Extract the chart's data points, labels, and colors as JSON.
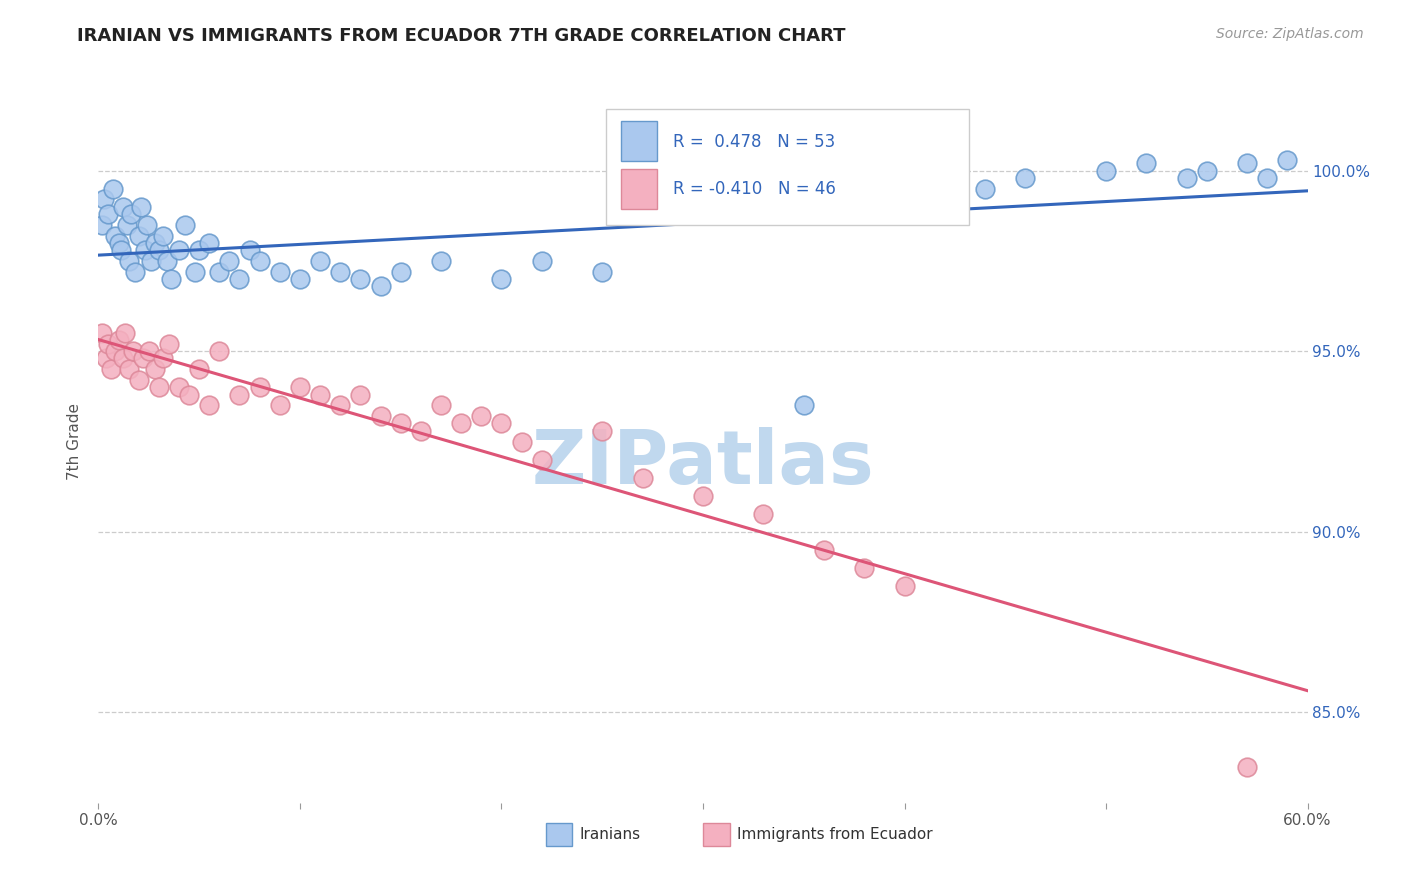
{
  "title": "IRANIAN VS IMMIGRANTS FROM ECUADOR 7TH GRADE CORRELATION CHART",
  "source": "Source: ZipAtlas.com",
  "ylabel_text": "7th Grade",
  "xlim": [
    0.0,
    60.0
  ],
  "ylim": [
    82.5,
    102.5
  ],
  "grid_color": "#cccccc",
  "grid_style": "--",
  "background_color": "#ffffff",
  "watermark_text": "ZIPatlas",
  "watermark_color": "#c0d8ee",
  "legend_R_blue": "0.478",
  "legend_N_blue": "53",
  "legend_R_pink": "-0.410",
  "legend_N_pink": "46",
  "blue_color": "#aac8ee",
  "blue_edge_color": "#6699cc",
  "blue_line_color": "#3366bb",
  "pink_color": "#f4b0c0",
  "pink_edge_color": "#dd8899",
  "pink_line_color": "#dd5577",
  "iranians_label": "Iranians",
  "ecuador_label": "Immigrants from Ecuador",
  "blue_scatter_x": [
    0.2,
    0.3,
    0.5,
    0.7,
    0.8,
    1.0,
    1.1,
    1.2,
    1.4,
    1.5,
    1.6,
    1.8,
    2.0,
    2.1,
    2.3,
    2.4,
    2.6,
    2.8,
    3.0,
    3.2,
    3.4,
    3.6,
    4.0,
    4.3,
    4.8,
    5.0,
    5.5,
    6.0,
    6.5,
    7.0,
    7.5,
    8.0,
    9.0,
    10.0,
    11.0,
    12.0,
    13.0,
    14.0,
    15.0,
    17.0,
    20.0,
    22.0,
    25.0,
    35.0,
    44.0,
    46.0,
    50.0,
    52.0,
    54.0,
    55.0,
    57.0,
    58.0,
    59.0
  ],
  "blue_scatter_y": [
    98.5,
    99.2,
    98.8,
    99.5,
    98.2,
    98.0,
    97.8,
    99.0,
    98.5,
    97.5,
    98.8,
    97.2,
    98.2,
    99.0,
    97.8,
    98.5,
    97.5,
    98.0,
    97.8,
    98.2,
    97.5,
    97.0,
    97.8,
    98.5,
    97.2,
    97.8,
    98.0,
    97.2,
    97.5,
    97.0,
    97.8,
    97.5,
    97.2,
    97.0,
    97.5,
    97.2,
    97.0,
    96.8,
    97.2,
    97.5,
    97.0,
    97.5,
    97.2,
    93.5,
    99.5,
    99.8,
    100.0,
    100.2,
    99.8,
    100.0,
    100.2,
    99.8,
    100.3
  ],
  "pink_scatter_x": [
    0.2,
    0.4,
    0.5,
    0.6,
    0.8,
    1.0,
    1.2,
    1.3,
    1.5,
    1.7,
    2.0,
    2.2,
    2.5,
    2.8,
    3.0,
    3.2,
    3.5,
    4.0,
    4.5,
    5.0,
    5.5,
    6.0,
    7.0,
    8.0,
    9.0,
    10.0,
    11.0,
    12.0,
    13.0,
    14.0,
    15.0,
    16.0,
    17.0,
    18.0,
    19.0,
    20.0,
    21.0,
    22.0,
    25.0,
    27.0,
    30.0,
    33.0,
    36.0,
    38.0,
    40.0,
    57.0
  ],
  "pink_scatter_y": [
    95.5,
    94.8,
    95.2,
    94.5,
    95.0,
    95.3,
    94.8,
    95.5,
    94.5,
    95.0,
    94.2,
    94.8,
    95.0,
    94.5,
    94.0,
    94.8,
    95.2,
    94.0,
    93.8,
    94.5,
    93.5,
    95.0,
    93.8,
    94.0,
    93.5,
    94.0,
    93.8,
    93.5,
    93.8,
    93.2,
    93.0,
    92.8,
    93.5,
    93.0,
    93.2,
    93.0,
    92.5,
    92.0,
    92.8,
    91.5,
    91.0,
    90.5,
    89.5,
    89.0,
    88.5,
    83.5
  ]
}
